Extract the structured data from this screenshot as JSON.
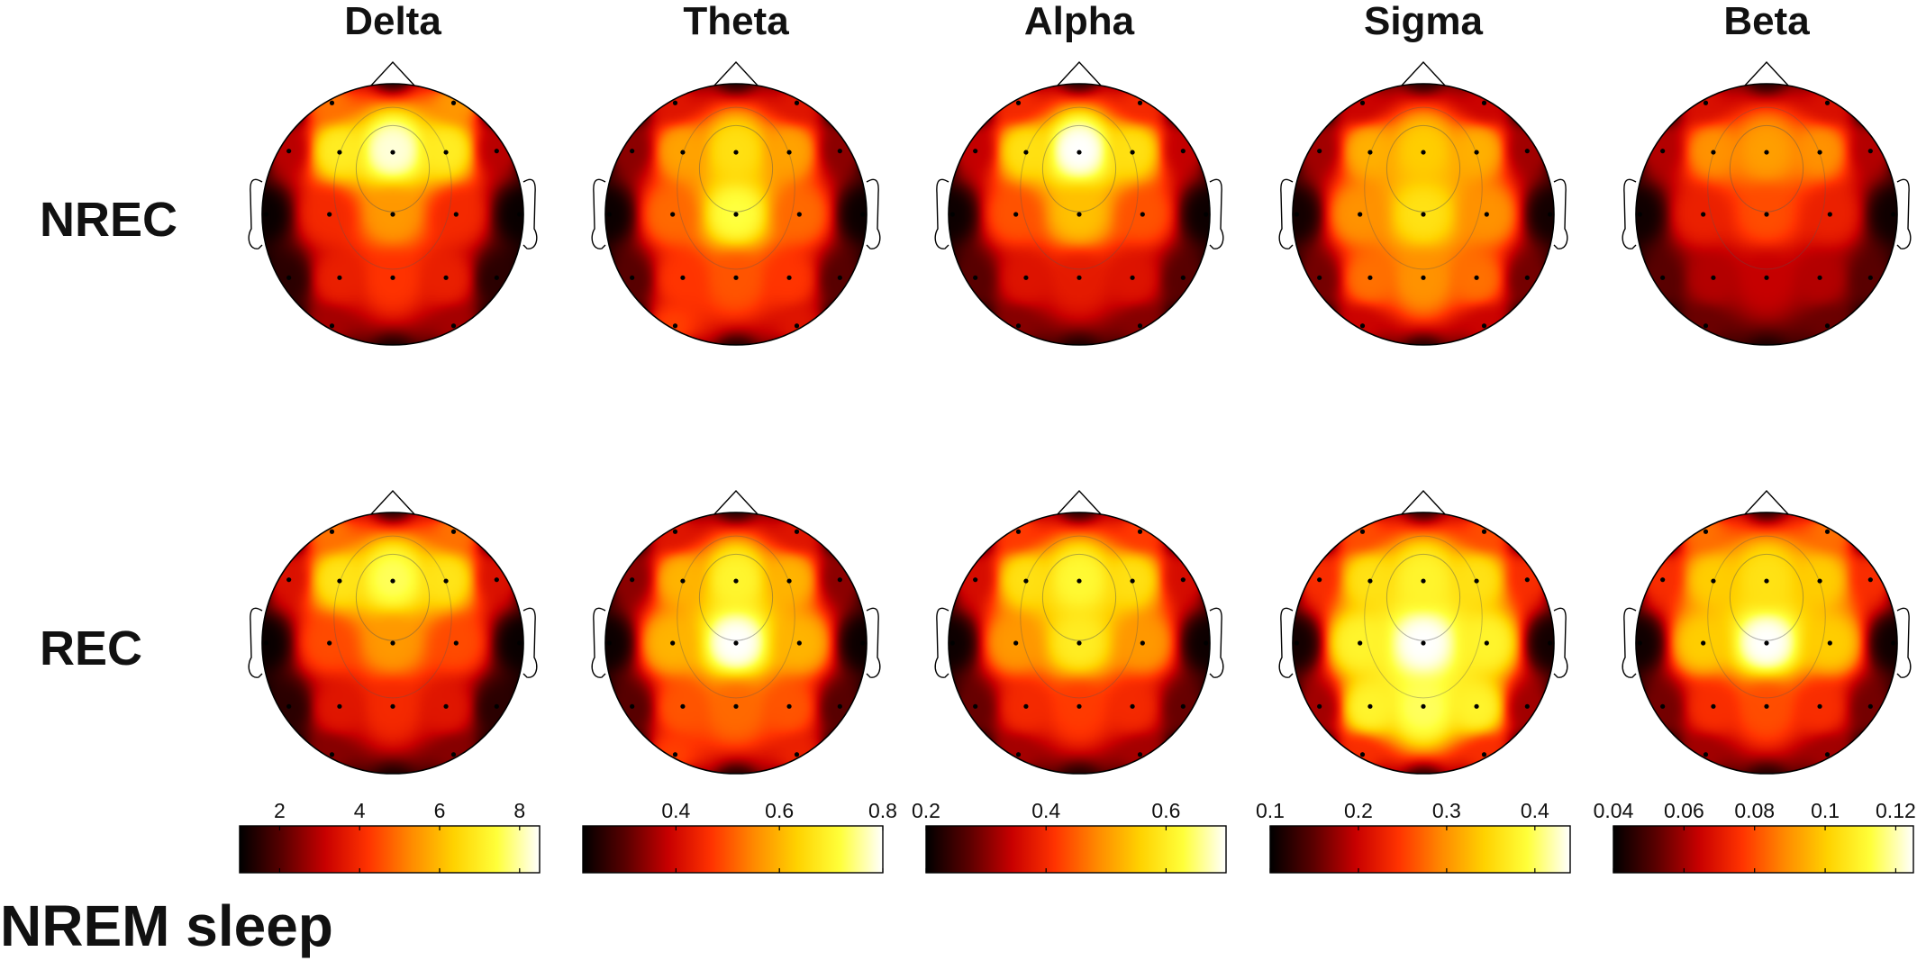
{
  "figure": {
    "title": "NREM sleep",
    "colormap": [
      "#000000",
      "#5a0000",
      "#c80000",
      "#ff3300",
      "#ff8a00",
      "#ffd200",
      "#ffff3a",
      "#ffffff"
    ]
  },
  "chart_data": {
    "type": "heatmap",
    "kind": "eeg-topographic-maps",
    "columns": [
      "Delta",
      "Theta",
      "Alpha",
      "Sigma",
      "Beta"
    ],
    "rows": [
      "NREC",
      "REC"
    ],
    "electrodes": [
      {
        "x": -0.48,
        "y": 0.88
      },
      {
        "x": 0.48,
        "y": 0.88
      },
      {
        "x": -0.82,
        "y": 0.5
      },
      {
        "x": -0.42,
        "y": 0.49
      },
      {
        "x": 0.0,
        "y": 0.49
      },
      {
        "x": 0.42,
        "y": 0.49
      },
      {
        "x": 0.82,
        "y": 0.5
      },
      {
        "x": -1.0,
        "y": 0.0
      },
      {
        "x": -0.5,
        "y": 0.0
      },
      {
        "x": 0.0,
        "y": 0.0
      },
      {
        "x": 0.5,
        "y": 0.0
      },
      {
        "x": 1.0,
        "y": 0.0
      },
      {
        "x": -0.82,
        "y": -0.5
      },
      {
        "x": -0.42,
        "y": -0.5
      },
      {
        "x": 0.0,
        "y": -0.5
      },
      {
        "x": 0.42,
        "y": -0.5
      },
      {
        "x": 0.82,
        "y": -0.5
      },
      {
        "x": -0.48,
        "y": -0.88
      },
      {
        "x": 0.48,
        "y": -0.88
      }
    ],
    "colorbars": [
      {
        "band": "Delta",
        "range": [
          1.0,
          8.5
        ],
        "ticks": [
          2,
          4,
          6,
          8
        ],
        "tick_labels": [
          "2",
          "4",
          "6",
          "8"
        ]
      },
      {
        "band": "Theta",
        "range": [
          0.22,
          0.8
        ],
        "ticks": [
          0.4,
          0.6,
          0.8
        ],
        "tick_labels": [
          "0.4",
          "0.6",
          "0.8"
        ]
      },
      {
        "band": "Alpha",
        "range": [
          0.2,
          0.7
        ],
        "ticks": [
          0.2,
          0.4,
          0.6
        ],
        "tick_labels": [
          "0.2",
          "0.4",
          "0.6"
        ]
      },
      {
        "band": "Sigma",
        "range": [
          0.1,
          0.44
        ],
        "ticks": [
          0.1,
          0.2,
          0.3,
          0.4
        ],
        "tick_labels": [
          "0.1",
          "0.2",
          "0.3",
          "0.4"
        ]
      },
      {
        "band": "Beta",
        "range": [
          0.04,
          0.125
        ],
        "ticks": [
          0.04,
          0.06,
          0.08,
          0.1,
          0.12
        ],
        "tick_labels": [
          "0.04",
          "0.06",
          "0.08",
          "0.1",
          "0.12"
        ]
      }
    ],
    "maps": {
      "NREC": {
        "Delta": [
          5.0,
          5.5,
          3.0,
          7.0,
          8.3,
          7.0,
          3.0,
          1.1,
          4.0,
          5.5,
          4.0,
          1.1,
          1.5,
          3.8,
          4.2,
          3.8,
          1.5,
          2.8,
          2.8
        ],
        "Theta": [
          0.42,
          0.42,
          0.34,
          0.58,
          0.66,
          0.58,
          0.34,
          0.23,
          0.52,
          0.72,
          0.52,
          0.23,
          0.3,
          0.47,
          0.5,
          0.47,
          0.3,
          0.48,
          0.42
        ],
        "Alpha": [
          0.4,
          0.4,
          0.34,
          0.58,
          0.7,
          0.58,
          0.34,
          0.21,
          0.44,
          0.54,
          0.44,
          0.21,
          0.27,
          0.37,
          0.38,
          0.37,
          0.27,
          0.3,
          0.3
        ],
        "Sigma": [
          0.2,
          0.2,
          0.18,
          0.32,
          0.34,
          0.32,
          0.18,
          0.11,
          0.3,
          0.36,
          0.3,
          0.11,
          0.16,
          0.28,
          0.3,
          0.28,
          0.16,
          0.2,
          0.2
        ],
        "Beta": [
          0.068,
          0.068,
          0.062,
          0.09,
          0.092,
          0.09,
          0.062,
          0.042,
          0.072,
          0.08,
          0.072,
          0.042,
          0.052,
          0.062,
          0.064,
          0.062,
          0.052,
          0.054,
          0.054
        ]
      },
      "REC": {
        "Delta": [
          5.0,
          5.0,
          3.5,
          6.8,
          7.6,
          6.8,
          3.5,
          1.1,
          4.5,
          5.5,
          4.5,
          1.1,
          1.5,
          3.6,
          4.0,
          3.6,
          1.5,
          2.5,
          2.5
        ],
        "Theta": [
          0.42,
          0.42,
          0.34,
          0.6,
          0.7,
          0.6,
          0.34,
          0.23,
          0.6,
          0.8,
          0.6,
          0.23,
          0.3,
          0.5,
          0.52,
          0.5,
          0.3,
          0.48,
          0.44
        ],
        "Alpha": [
          0.42,
          0.42,
          0.36,
          0.58,
          0.62,
          0.58,
          0.36,
          0.21,
          0.5,
          0.6,
          0.5,
          0.21,
          0.28,
          0.4,
          0.42,
          0.4,
          0.28,
          0.32,
          0.32
        ],
        "Sigma": [
          0.26,
          0.26,
          0.24,
          0.36,
          0.38,
          0.36,
          0.24,
          0.11,
          0.38,
          0.44,
          0.38,
          0.11,
          0.18,
          0.38,
          0.4,
          0.38,
          0.18,
          0.24,
          0.24
        ],
        "Beta": [
          0.085,
          0.085,
          0.075,
          0.1,
          0.105,
          0.1,
          0.075,
          0.042,
          0.1,
          0.125,
          0.1,
          0.042,
          0.055,
          0.075,
          0.08,
          0.075,
          0.055,
          0.06,
          0.06
        ]
      }
    }
  }
}
